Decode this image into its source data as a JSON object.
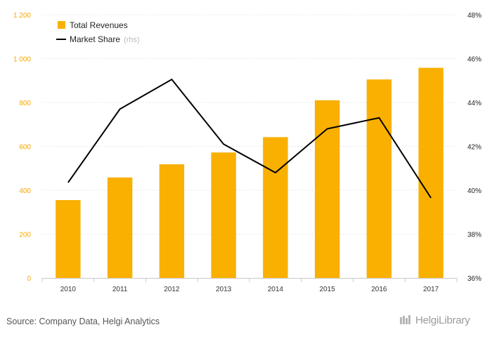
{
  "chart_data": {
    "type": "bar",
    "categories": [
      "2010",
      "2011",
      "2012",
      "2013",
      "2014",
      "2015",
      "2016",
      "2017"
    ],
    "series": [
      {
        "name": "Total Revenues",
        "axis": "left",
        "type": "bar",
        "color": "#f9b000",
        "values": [
          355,
          458,
          518,
          572,
          642,
          810,
          905,
          958
        ]
      },
      {
        "name": "Market Share",
        "axis": "right",
        "type": "line",
        "color": "#000000",
        "unit": "%",
        "values": [
          40.35,
          43.7,
          45.05,
          42.1,
          40.8,
          42.8,
          43.3,
          39.65
        ]
      }
    ],
    "left_axis": {
      "ylim": [
        0,
        1200
      ],
      "ticks": [
        0,
        200,
        400,
        600,
        800,
        1000,
        1200
      ],
      "tick_labels": [
        "0",
        "200",
        "400",
        "600",
        "800",
        "1 000",
        "1 200"
      ],
      "color": "#f5a800"
    },
    "right_axis": {
      "ylim": [
        36,
        48
      ],
      "ticks": [
        36,
        38,
        40,
        42,
        44,
        46,
        48
      ],
      "tick_labels": [
        "36%",
        "38%",
        "40%",
        "42%",
        "44%",
        "46%",
        "48%"
      ]
    },
    "legend": {
      "placement": "top-left",
      "items": [
        {
          "label": "Total Revenues",
          "suffix": ""
        },
        {
          "label": "Market Share",
          "suffix": "(rhs)"
        }
      ]
    },
    "grid": true
  },
  "footer": {
    "source": "Source: Company Data, Helgi Analytics",
    "brand": "HelgiLibrary"
  }
}
